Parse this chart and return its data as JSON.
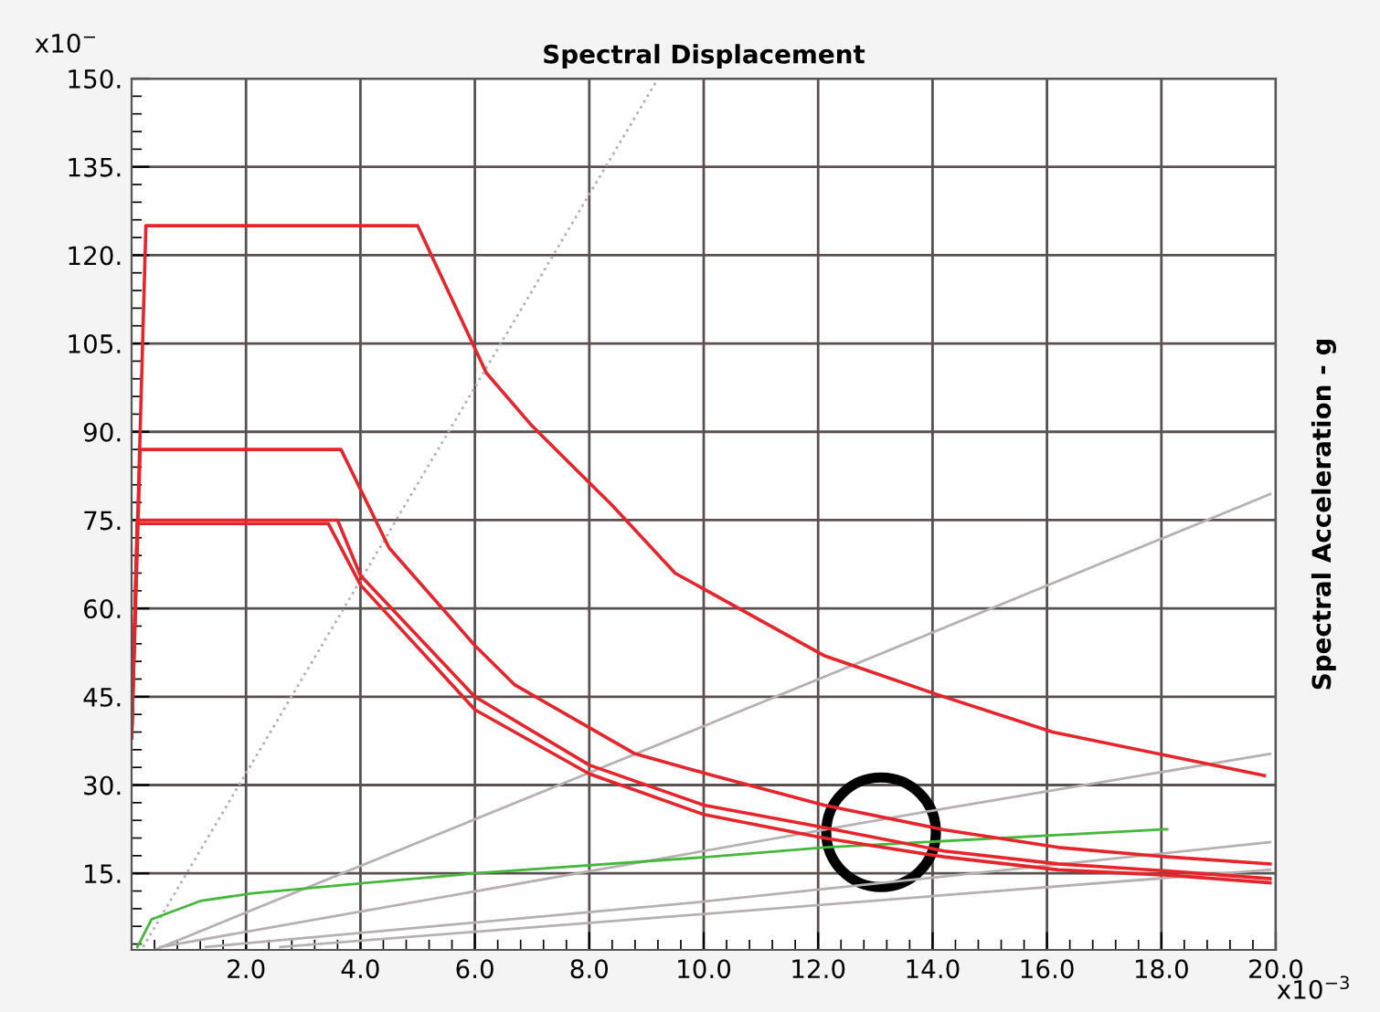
{
  "chart_data": {
    "type": "line",
    "title": "Spectral Displacement",
    "ylabel": "Spectral Acceleration - g",
    "annotations": [
      "x10$^{−}$",
      "x10$^{−3}$"
    ],
    "xlim": [
      0,
      20
    ],
    "ylim": [
      2,
      150
    ],
    "xticks": [
      {
        "value": 2,
        "label": "2.0"
      },
      {
        "value": 4,
        "label": "4.0"
      },
      {
        "value": 6,
        "label": "6.0"
      },
      {
        "value": 8,
        "label": "8.0"
      },
      {
        "value": 10,
        "label": "10.0"
      },
      {
        "value": 12,
        "label": "12.0"
      },
      {
        "value": 14,
        "label": "14.0"
      },
      {
        "value": 16,
        "label": "16.0"
      },
      {
        "value": 18,
        "label": "18.0"
      },
      {
        "value": 20,
        "label": "20.0"
      }
    ],
    "yticks": [
      {
        "value": 15,
        "label": "15."
      },
      {
        "value": 30,
        "label": "30."
      },
      {
        "value": 45,
        "label": "45."
      },
      {
        "value": 60,
        "label": "60."
      },
      {
        "value": 75,
        "label": "75."
      },
      {
        "value": 90,
        "label": "90."
      },
      {
        "value": 105,
        "label": "105."
      },
      {
        "value": 120,
        "label": "120."
      },
      {
        "value": 135,
        "label": "135."
      },
      {
        "value": 150,
        "label": "150."
      }
    ],
    "grid": true,
    "marker": "none",
    "line_style": "solid",
    "series": [
      {
        "color": "#b8b0b0",
        "line_style": "dotted",
        "x": [
          0.2,
          9.2
        ],
        "values": [
          2.5,
          150
        ]
      },
      {
        "color": "#b8b0b0",
        "x": [
          0.4,
          10,
          19.9
        ],
        "values": [
          2,
          40,
          79.4
        ]
      },
      {
        "color": "#b8b0b0",
        "x": [
          0.5,
          14.2,
          19.9
        ],
        "values": [
          2.5,
          26,
          35.3
        ]
      },
      {
        "color": "#b8b0b0",
        "x": [
          1.3,
          9.8,
          19.9
        ],
        "values": [
          2.5,
          10,
          20.3
        ]
      },
      {
        "color": "#b8b0b0",
        "x": [
          2.6,
          19.9
        ],
        "values": [
          2.5,
          15.6
        ]
      },
      {
        "color": "#44b83a",
        "x": [
          0.1,
          0.35,
          1.2,
          2.1,
          4.1,
          6.0,
          10.1,
          12.1,
          18.1
        ],
        "values": [
          2.5,
          7.2,
          10.3,
          11.6,
          13.4,
          15,
          17.8,
          19.4,
          22.5
        ]
      },
      {
        "color": "#e8242b",
        "x": [
          0,
          0.25,
          5.0,
          6.2,
          7.0,
          8.4,
          9.5,
          12.1,
          14.1,
          16.1,
          18.1,
          19.8
        ],
        "values": [
          38,
          125,
          125,
          100,
          91,
          77.5,
          66,
          52,
          45.3,
          39,
          35,
          31.6
        ]
      },
      {
        "color": "#e8242b",
        "x": [
          0,
          0.15,
          3.66,
          4.5,
          6.0,
          6.7,
          8.8,
          10.1,
          12.1,
          14.2,
          16.2,
          18.1,
          19.9
        ],
        "values": [
          38,
          87,
          87,
          70.3,
          53.7,
          47,
          35.3,
          31.8,
          26.6,
          22.4,
          19.4,
          17.8,
          16.6
        ]
      },
      {
        "color": "#e8242b",
        "x": [
          0,
          0.1,
          3.6,
          4.0,
          6.0,
          8.0,
          10.0,
          12.1,
          14.2,
          16.2,
          18.1,
          19.9
        ],
        "values": [
          38,
          75,
          75,
          65.6,
          45,
          33.4,
          26.6,
          22.8,
          18.8,
          16.6,
          15.4,
          14.1
        ]
      },
      {
        "color": "#e8242b",
        "x": [
          0,
          0.1,
          3.44,
          4.0,
          6.0,
          8.0,
          10.0,
          12.1,
          14.2,
          16.2,
          18.1,
          19.9
        ],
        "values": [
          38,
          74.4,
          74.4,
          64,
          42.8,
          31.9,
          25,
          21,
          17.8,
          15.6,
          14.7,
          13.4
        ]
      }
    ]
  }
}
